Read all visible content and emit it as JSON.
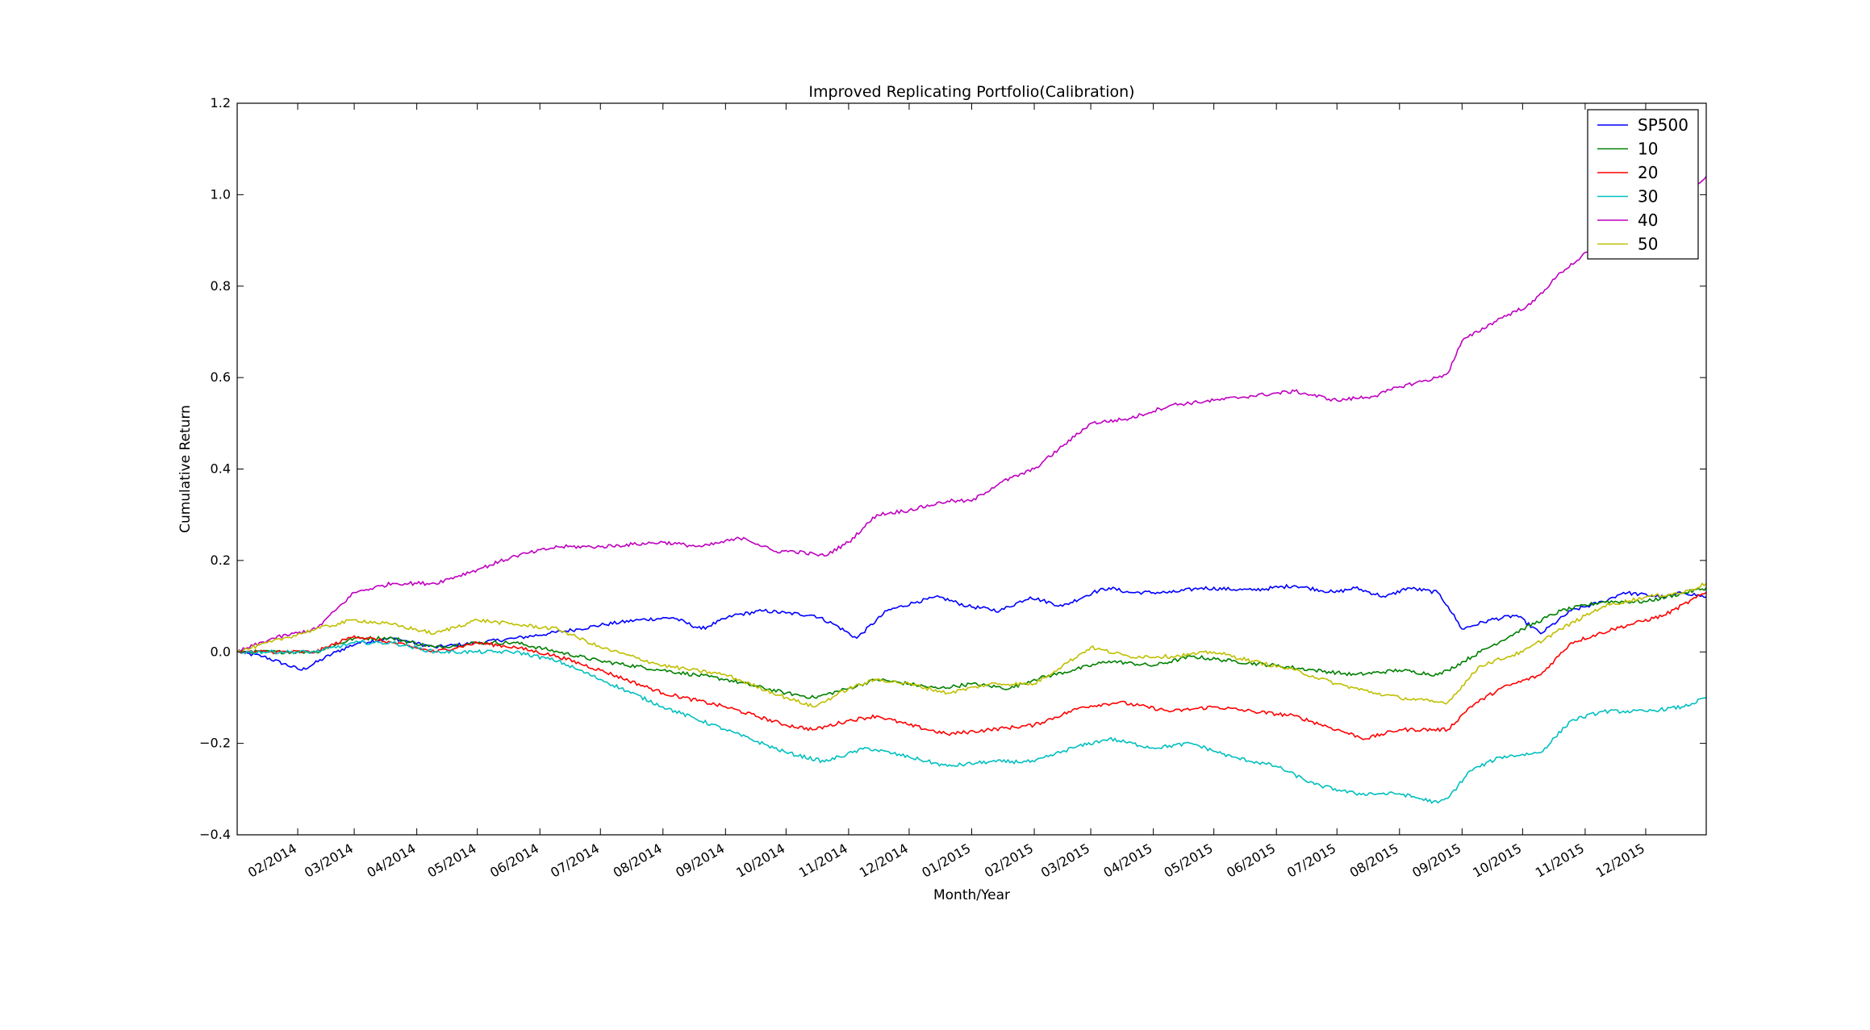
{
  "chart_data": {
    "type": "line",
    "title": "Improved Replicating Portfolio(Calibration)",
    "xlabel": "Month/Year",
    "ylabel": "Cumulative Return",
    "ylim": [
      -0.4,
      1.2
    ],
    "xlim": [
      "2014-01-02",
      "2015-12-31"
    ],
    "yticks": [
      -0.4,
      -0.2,
      0.0,
      0.2,
      0.4,
      0.6,
      0.8,
      1.0,
      1.2
    ],
    "ytick_labels": [
      "−0.4",
      "−0.2",
      "0.0",
      "0.2",
      "0.4",
      "0.6",
      "0.8",
      "1.0",
      "1.2"
    ],
    "xticks": [
      "2014-02-01",
      "2014-03-01",
      "2014-04-01",
      "2014-05-01",
      "2014-06-01",
      "2014-07-01",
      "2014-08-01",
      "2014-09-01",
      "2014-10-01",
      "2014-11-01",
      "2014-12-01",
      "2015-01-01",
      "2015-02-01",
      "2015-03-01",
      "2015-04-01",
      "2015-05-01",
      "2015-06-01",
      "2015-07-01",
      "2015-08-01",
      "2015-09-01",
      "2015-10-01",
      "2015-11-01",
      "2015-12-01"
    ],
    "xtick_labels": [
      "02/2014",
      "03/2014",
      "04/2014",
      "05/2014",
      "06/2014",
      "07/2014",
      "08/2014",
      "09/2014",
      "10/2014",
      "11/2014",
      "12/2014",
      "01/2015",
      "02/2015",
      "03/2015",
      "04/2015",
      "05/2015",
      "06/2015",
      "07/2015",
      "08/2015",
      "09/2015",
      "10/2015",
      "11/2015",
      "12/2015"
    ],
    "grid": false,
    "legend_position": "top-right",
    "series": [
      {
        "name": "SP500",
        "color": "#0000ff",
        "x": [
          "2014-01-02",
          "2014-01-15",
          "2014-02-03",
          "2014-02-20",
          "2014-03-03",
          "2014-03-20",
          "2014-04-10",
          "2014-05-01",
          "2014-05-20",
          "2014-06-05",
          "2014-06-20",
          "2014-07-03",
          "2014-07-20",
          "2014-08-06",
          "2014-08-20",
          "2014-09-05",
          "2014-09-20",
          "2014-10-01",
          "2014-10-15",
          "2014-10-25",
          "2014-11-05",
          "2014-11-20",
          "2014-12-05",
          "2014-12-16",
          "2014-12-30",
          "2015-01-15",
          "2015-01-30",
          "2015-02-15",
          "2015-03-02",
          "2015-03-10",
          "2015-03-20",
          "2015-04-10",
          "2015-04-25",
          "2015-05-20",
          "2015-06-10",
          "2015-06-30",
          "2015-07-10",
          "2015-07-25",
          "2015-08-05",
          "2015-08-20",
          "2015-08-25",
          "2015-09-01",
          "2015-09-15",
          "2015-09-28",
          "2015-10-10",
          "2015-10-25",
          "2015-11-10",
          "2015-11-20",
          "2015-12-10",
          "2015-12-20",
          "2015-12-31"
        ],
        "y": [
          0.0,
          -0.01,
          -0.04,
          0.0,
          0.02,
          0.03,
          0.01,
          0.02,
          0.03,
          0.04,
          0.05,
          0.06,
          0.07,
          0.075,
          0.05,
          0.08,
          0.09,
          0.085,
          0.08,
          0.06,
          0.03,
          0.09,
          0.11,
          0.12,
          0.1,
          0.09,
          0.12,
          0.1,
          0.13,
          0.14,
          0.13,
          0.13,
          0.14,
          0.135,
          0.145,
          0.13,
          0.14,
          0.12,
          0.14,
          0.13,
          0.1,
          0.05,
          0.07,
          0.08,
          0.04,
          0.09,
          0.11,
          0.13,
          0.12,
          0.13,
          0.12
        ]
      },
      {
        "name": "10",
        "color": "#008000",
        "x": [
          "2014-01-02",
          "2014-02-10",
          "2014-03-01",
          "2014-03-20",
          "2014-04-10",
          "2014-05-01",
          "2014-05-20",
          "2014-06-10",
          "2014-07-01",
          "2014-08-01",
          "2014-09-01",
          "2014-10-01",
          "2014-10-15",
          "2014-11-01",
          "2014-11-15",
          "2014-12-01",
          "2014-12-15",
          "2015-01-01",
          "2015-01-20",
          "2015-02-01",
          "2015-02-20",
          "2015-03-10",
          "2015-04-01",
          "2015-04-20",
          "2015-05-10",
          "2015-06-01",
          "2015-06-20",
          "2015-07-10",
          "2015-08-01",
          "2015-08-20",
          "2015-08-25",
          "2015-09-10",
          "2015-10-01",
          "2015-10-20",
          "2015-11-10",
          "2015-12-01",
          "2015-12-31"
        ],
        "y": [
          0.0,
          0.0,
          0.03,
          0.03,
          0.01,
          0.02,
          0.02,
          0.0,
          -0.02,
          -0.04,
          -0.06,
          -0.09,
          -0.1,
          -0.08,
          -0.06,
          -0.07,
          -0.08,
          -0.07,
          -0.08,
          -0.06,
          -0.04,
          -0.02,
          -0.03,
          -0.01,
          -0.02,
          -0.03,
          -0.04,
          -0.05,
          -0.04,
          -0.05,
          -0.04,
          0.0,
          0.05,
          0.09,
          0.11,
          0.11,
          0.14
        ]
      },
      {
        "name": "20",
        "color": "#ff0000",
        "x": [
          "2014-01-02",
          "2014-02-10",
          "2014-03-01",
          "2014-03-20",
          "2014-04-10",
          "2014-05-01",
          "2014-05-20",
          "2014-06-10",
          "2014-07-01",
          "2014-08-01",
          "2014-09-01",
          "2014-10-01",
          "2014-10-15",
          "2014-11-01",
          "2014-11-15",
          "2014-12-01",
          "2014-12-20",
          "2015-01-10",
          "2015-02-01",
          "2015-02-25",
          "2015-03-15",
          "2015-04-10",
          "2015-05-01",
          "2015-05-20",
          "2015-06-10",
          "2015-07-01",
          "2015-07-15",
          "2015-08-01",
          "2015-08-25",
          "2015-09-05",
          "2015-09-20",
          "2015-10-10",
          "2015-10-25",
          "2015-11-15",
          "2015-12-10",
          "2015-12-31"
        ],
        "y": [
          0.0,
          0.0,
          0.035,
          0.02,
          0.0,
          0.02,
          0.01,
          -0.01,
          -0.04,
          -0.09,
          -0.12,
          -0.16,
          -0.17,
          -0.15,
          -0.14,
          -0.16,
          -0.18,
          -0.17,
          -0.16,
          -0.12,
          -0.11,
          -0.13,
          -0.12,
          -0.13,
          -0.14,
          -0.17,
          -0.19,
          -0.17,
          -0.17,
          -0.12,
          -0.08,
          -0.05,
          0.02,
          0.05,
          0.08,
          0.13
        ]
      },
      {
        "name": "30",
        "color": "#00bfbf",
        "x": [
          "2014-01-02",
          "2014-02-10",
          "2014-03-01",
          "2014-03-20",
          "2014-04-10",
          "2014-05-01",
          "2014-05-20",
          "2014-06-10",
          "2014-07-01",
          "2014-08-01",
          "2014-09-01",
          "2014-10-01",
          "2014-10-20",
          "2014-11-10",
          "2014-12-01",
          "2014-12-20",
          "2015-01-10",
          "2015-02-01",
          "2015-02-20",
          "2015-03-10",
          "2015-04-01",
          "2015-04-20",
          "2015-05-10",
          "2015-06-01",
          "2015-06-20",
          "2015-07-10",
          "2015-08-01",
          "2015-08-20",
          "2015-08-25",
          "2015-09-05",
          "2015-09-20",
          "2015-10-10",
          "2015-10-25",
          "2015-11-10",
          "2015-12-01",
          "2015-12-20",
          "2015-12-31"
        ],
        "y": [
          0.0,
          0.0,
          0.02,
          0.02,
          0.0,
          0.0,
          0.0,
          -0.02,
          -0.06,
          -0.12,
          -0.17,
          -0.22,
          -0.24,
          -0.21,
          -0.23,
          -0.25,
          -0.24,
          -0.24,
          -0.21,
          -0.19,
          -0.21,
          -0.2,
          -0.23,
          -0.25,
          -0.29,
          -0.31,
          -0.31,
          -0.33,
          -0.32,
          -0.26,
          -0.23,
          -0.22,
          -0.15,
          -0.13,
          -0.13,
          -0.12,
          -0.1
        ]
      },
      {
        "name": "40",
        "color": "#bf00bf",
        "x": [
          "2014-01-02",
          "2014-01-20",
          "2014-02-10",
          "2014-03-01",
          "2014-03-20",
          "2014-04-10",
          "2014-05-01",
          "2014-05-20",
          "2014-06-10",
          "2014-07-01",
          "2014-08-01",
          "2014-08-20",
          "2014-09-10",
          "2014-09-25",
          "2014-10-05",
          "2014-10-20",
          "2014-11-01",
          "2014-11-15",
          "2014-12-01",
          "2014-12-20",
          "2015-01-01",
          "2015-01-15",
          "2015-02-01",
          "2015-02-15",
          "2015-03-01",
          "2015-03-20",
          "2015-04-10",
          "2015-05-01",
          "2015-05-20",
          "2015-06-10",
          "2015-07-01",
          "2015-07-20",
          "2015-08-01",
          "2015-08-20",
          "2015-08-25",
          "2015-09-01",
          "2015-09-20",
          "2015-10-05",
          "2015-10-20",
          "2015-11-10",
          "2015-12-01",
          "2015-12-20",
          "2015-12-31"
        ],
        "y": [
          0.0,
          0.03,
          0.05,
          0.13,
          0.15,
          0.15,
          0.18,
          0.21,
          0.23,
          0.23,
          0.24,
          0.23,
          0.25,
          0.22,
          0.22,
          0.21,
          0.24,
          0.3,
          0.31,
          0.33,
          0.33,
          0.37,
          0.4,
          0.45,
          0.5,
          0.51,
          0.54,
          0.55,
          0.56,
          0.57,
          0.55,
          0.56,
          0.58,
          0.6,
          0.61,
          0.68,
          0.73,
          0.76,
          0.83,
          0.9,
          0.93,
          1.0,
          1.04
        ]
      },
      {
        "name": "50",
        "color": "#bfbf00",
        "x": [
          "2014-01-02",
          "2014-02-10",
          "2014-03-01",
          "2014-03-20",
          "2014-04-10",
          "2014-05-01",
          "2014-05-20",
          "2014-06-10",
          "2014-07-01",
          "2014-08-01",
          "2014-09-01",
          "2014-10-01",
          "2014-10-15",
          "2014-11-01",
          "2014-11-15",
          "2014-12-01",
          "2014-12-20",
          "2015-01-10",
          "2015-02-01",
          "2015-02-15",
          "2015-03-01",
          "2015-03-20",
          "2015-04-10",
          "2015-05-01",
          "2015-05-20",
          "2015-06-10",
          "2015-07-01",
          "2015-07-20",
          "2015-08-01",
          "2015-08-20",
          "2015-08-25",
          "2015-09-10",
          "2015-10-01",
          "2015-10-20",
          "2015-11-10",
          "2015-12-01",
          "2015-12-20",
          "2015-12-31"
        ],
        "y": [
          0.0,
          0.05,
          0.07,
          0.06,
          0.04,
          0.07,
          0.06,
          0.05,
          0.01,
          -0.03,
          -0.05,
          -0.1,
          -0.12,
          -0.08,
          -0.06,
          -0.07,
          -0.09,
          -0.07,
          -0.07,
          -0.03,
          0.01,
          -0.01,
          -0.01,
          0.0,
          -0.02,
          -0.04,
          -0.07,
          -0.09,
          -0.1,
          -0.11,
          -0.11,
          -0.03,
          0.0,
          0.05,
          0.1,
          0.12,
          0.13,
          0.15
        ]
      }
    ]
  }
}
